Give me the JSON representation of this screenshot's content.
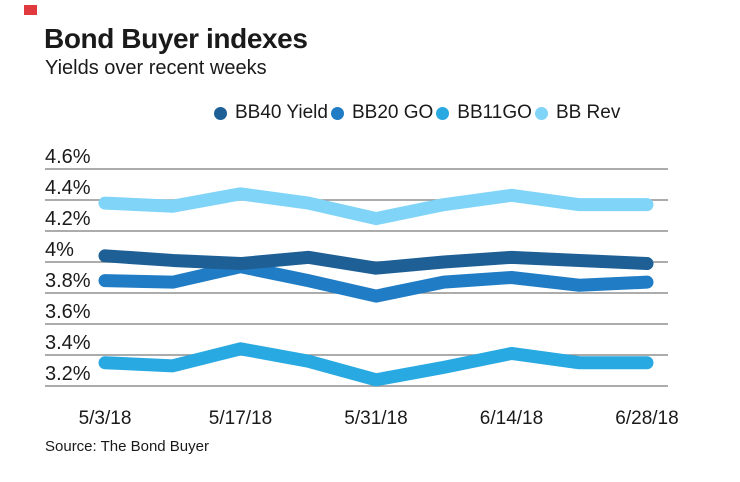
{
  "brand": {
    "accent_mark_color": "#e0393e"
  },
  "header": {
    "title": "Bond Buyer indexes",
    "subtitle": "Yields over recent weeks"
  },
  "source": "Source: The Bond Buyer",
  "colors": {
    "gridline": "#909090",
    "text": "#1a1a1a"
  },
  "chart_data": {
    "type": "line",
    "title": "Bond Buyer indexes",
    "subtitle": "Yields over recent weeks",
    "unit": "%",
    "x": [
      "5/3/18",
      "5/10/18",
      "5/17/18",
      "5/24/18",
      "5/31/18",
      "6/7/18",
      "6/14/18",
      "6/21/18",
      "6/28/18"
    ],
    "x_tick_labels": [
      "5/3/18",
      "5/17/18",
      "5/31/18",
      "6/14/18",
      "6/28/18"
    ],
    "y_ticks": [
      "4.6%",
      "4.4%",
      "4.2%",
      "4%",
      "3.8%",
      "3.6%",
      "3.4%",
      "3.2%"
    ],
    "y_tick_values": [
      4.6,
      4.4,
      4.2,
      4.0,
      3.8,
      3.6,
      3.4,
      3.2
    ],
    "ylim": [
      3.1,
      4.7
    ],
    "grid": "horizontal",
    "legend_position": "top",
    "series": [
      {
        "name": "BB40 Yield",
        "color": "#1e6096",
        "values": [
          4.04,
          4.01,
          3.99,
          4.03,
          3.96,
          4.0,
          4.03,
          4.01,
          3.99
        ]
      },
      {
        "name": "BB20 GO",
        "color": "#1f7cc5",
        "values": [
          3.88,
          3.87,
          3.97,
          3.88,
          3.78,
          3.87,
          3.9,
          3.85,
          3.87
        ]
      },
      {
        "name": "BB11GO",
        "color": "#29a9e1",
        "values": [
          3.35,
          3.33,
          3.44,
          3.36,
          3.24,
          3.32,
          3.41,
          3.35,
          3.35
        ]
      },
      {
        "name": "BB Rev",
        "color": "#7fd4f8",
        "values": [
          4.38,
          4.36,
          4.44,
          4.38,
          4.28,
          4.37,
          4.43,
          4.37,
          4.37
        ]
      }
    ]
  }
}
